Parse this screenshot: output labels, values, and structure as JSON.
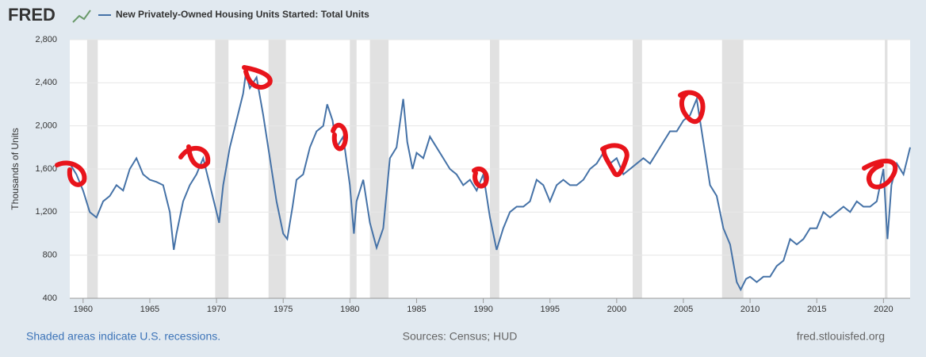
{
  "chart_data": {
    "type": "line",
    "logo": "FRED",
    "series": [
      {
        "name": "New Privately-Owned Housing Units Started: Total Units",
        "color": "#4572a7",
        "x": [
          1959.0,
          1959.5,
          1960.0,
          1960.5,
          1961.0,
          1961.5,
          1962.0,
          1962.5,
          1963.0,
          1963.5,
          1964.0,
          1964.5,
          1965.0,
          1965.5,
          1966.0,
          1966.5,
          1966.8,
          1967.0,
          1967.5,
          1968.0,
          1968.5,
          1969.0,
          1969.5,
          1970.0,
          1970.2,
          1970.5,
          1971.0,
          1971.5,
          1972.0,
          1972.2,
          1972.5,
          1973.0,
          1973.5,
          1974.0,
          1974.5,
          1975.0,
          1975.3,
          1975.7,
          1976.0,
          1976.5,
          1977.0,
          1977.5,
          1978.0,
          1978.3,
          1978.7,
          1979.0,
          1979.5,
          1980.0,
          1980.3,
          1980.5,
          1981.0,
          1981.5,
          1982.0,
          1982.5,
          1983.0,
          1983.5,
          1984.0,
          1984.3,
          1984.7,
          1985.0,
          1985.5,
          1986.0,
          1986.5,
          1987.0,
          1987.5,
          1988.0,
          1988.5,
          1989.0,
          1989.5,
          1990.0,
          1990.5,
          1991.0,
          1991.5,
          1992.0,
          1992.5,
          1993.0,
          1993.5,
          1994.0,
          1994.5,
          1995.0,
          1995.5,
          1996.0,
          1996.5,
          1997.0,
          1997.5,
          1998.0,
          1998.5,
          1999.0,
          1999.5,
          2000.0,
          2000.5,
          2001.0,
          2001.5,
          2002.0,
          2002.5,
          2003.0,
          2003.5,
          2004.0,
          2004.5,
          2005.0,
          2005.5,
          2006.0,
          2006.5,
          2007.0,
          2007.5,
          2008.0,
          2008.5,
          2009.0,
          2009.3,
          2009.7,
          2010.0,
          2010.5,
          2011.0,
          2011.5,
          2012.0,
          2012.5,
          2013.0,
          2013.5,
          2014.0,
          2014.5,
          2015.0,
          2015.5,
          2016.0,
          2016.5,
          2017.0,
          2017.5,
          2018.0,
          2018.5,
          2019.0,
          2019.5,
          2020.0,
          2020.3,
          2020.6,
          2021.0,
          2021.5,
          2022.0
        ],
        "values": [
          1650,
          1550,
          1400,
          1200,
          1150,
          1300,
          1350,
          1450,
          1400,
          1600,
          1700,
          1550,
          1500,
          1480,
          1450,
          1200,
          850,
          1000,
          1300,
          1450,
          1550,
          1700,
          1450,
          1200,
          1100,
          1450,
          1800,
          2050,
          2300,
          2490,
          2350,
          2450,
          2100,
          1700,
          1300,
          1000,
          950,
          1250,
          1500,
          1550,
          1800,
          1950,
          2000,
          2200,
          2050,
          1800,
          1900,
          1450,
          1000,
          1300,
          1500,
          1100,
          870,
          1050,
          1700,
          1800,
          2250,
          1850,
          1600,
          1750,
          1700,
          1900,
          1800,
          1700,
          1600,
          1550,
          1450,
          1500,
          1400,
          1550,
          1150,
          850,
          1050,
          1200,
          1250,
          1250,
          1300,
          1500,
          1450,
          1300,
          1450,
          1500,
          1450,
          1450,
          1500,
          1600,
          1650,
          1750,
          1650,
          1700,
          1550,
          1600,
          1650,
          1700,
          1650,
          1750,
          1850,
          1950,
          1950,
          2050,
          2100,
          2250,
          1850,
          1450,
          1350,
          1050,
          900,
          550,
          480,
          580,
          600,
          550,
          600,
          600,
          700,
          750,
          950,
          900,
          950,
          1050,
          1050,
          1200,
          1150,
          1200,
          1250,
          1200,
          1300,
          1250,
          1250,
          1300,
          1600,
          950,
          1450,
          1650,
          1550,
          1800
        ]
      }
    ],
    "y_label": "Thousands of Units",
    "xlim": [
      1959,
      2022
    ],
    "xticks": [
      1960,
      1965,
      1970,
      1975,
      1980,
      1985,
      1990,
      1995,
      2000,
      2005,
      2010,
      2015,
      2020
    ],
    "ylim": [
      400,
      2800
    ],
    "yticks": [
      400,
      800,
      {
        "value": 1200,
        "label": "1,200"
      },
      {
        "value": 1600,
        "label": "1,600"
      },
      {
        "value": 2000,
        "label": "2,000"
      },
      {
        "value": 2400,
        "label": "2,400"
      },
      {
        "value": 2800,
        "label": "2,800"
      }
    ],
    "grid": true,
    "recessions": [
      [
        1960.3,
        1961.1
      ],
      [
        1969.9,
        1970.9
      ],
      [
        1973.9,
        1975.2
      ],
      [
        1980.0,
        1980.5
      ],
      [
        1981.5,
        1982.9
      ],
      [
        1990.5,
        1991.2
      ],
      [
        2001.2,
        2001.9
      ],
      [
        2007.9,
        2009.5
      ],
      [
        2020.1,
        2020.3
      ]
    ],
    "recession_color": "#e1e1e1",
    "recession_note": "Shaded areas indicate U.S. recessions.",
    "sources": "Sources: Census; HUD",
    "site": "fred.stlouisfed.org"
  }
}
